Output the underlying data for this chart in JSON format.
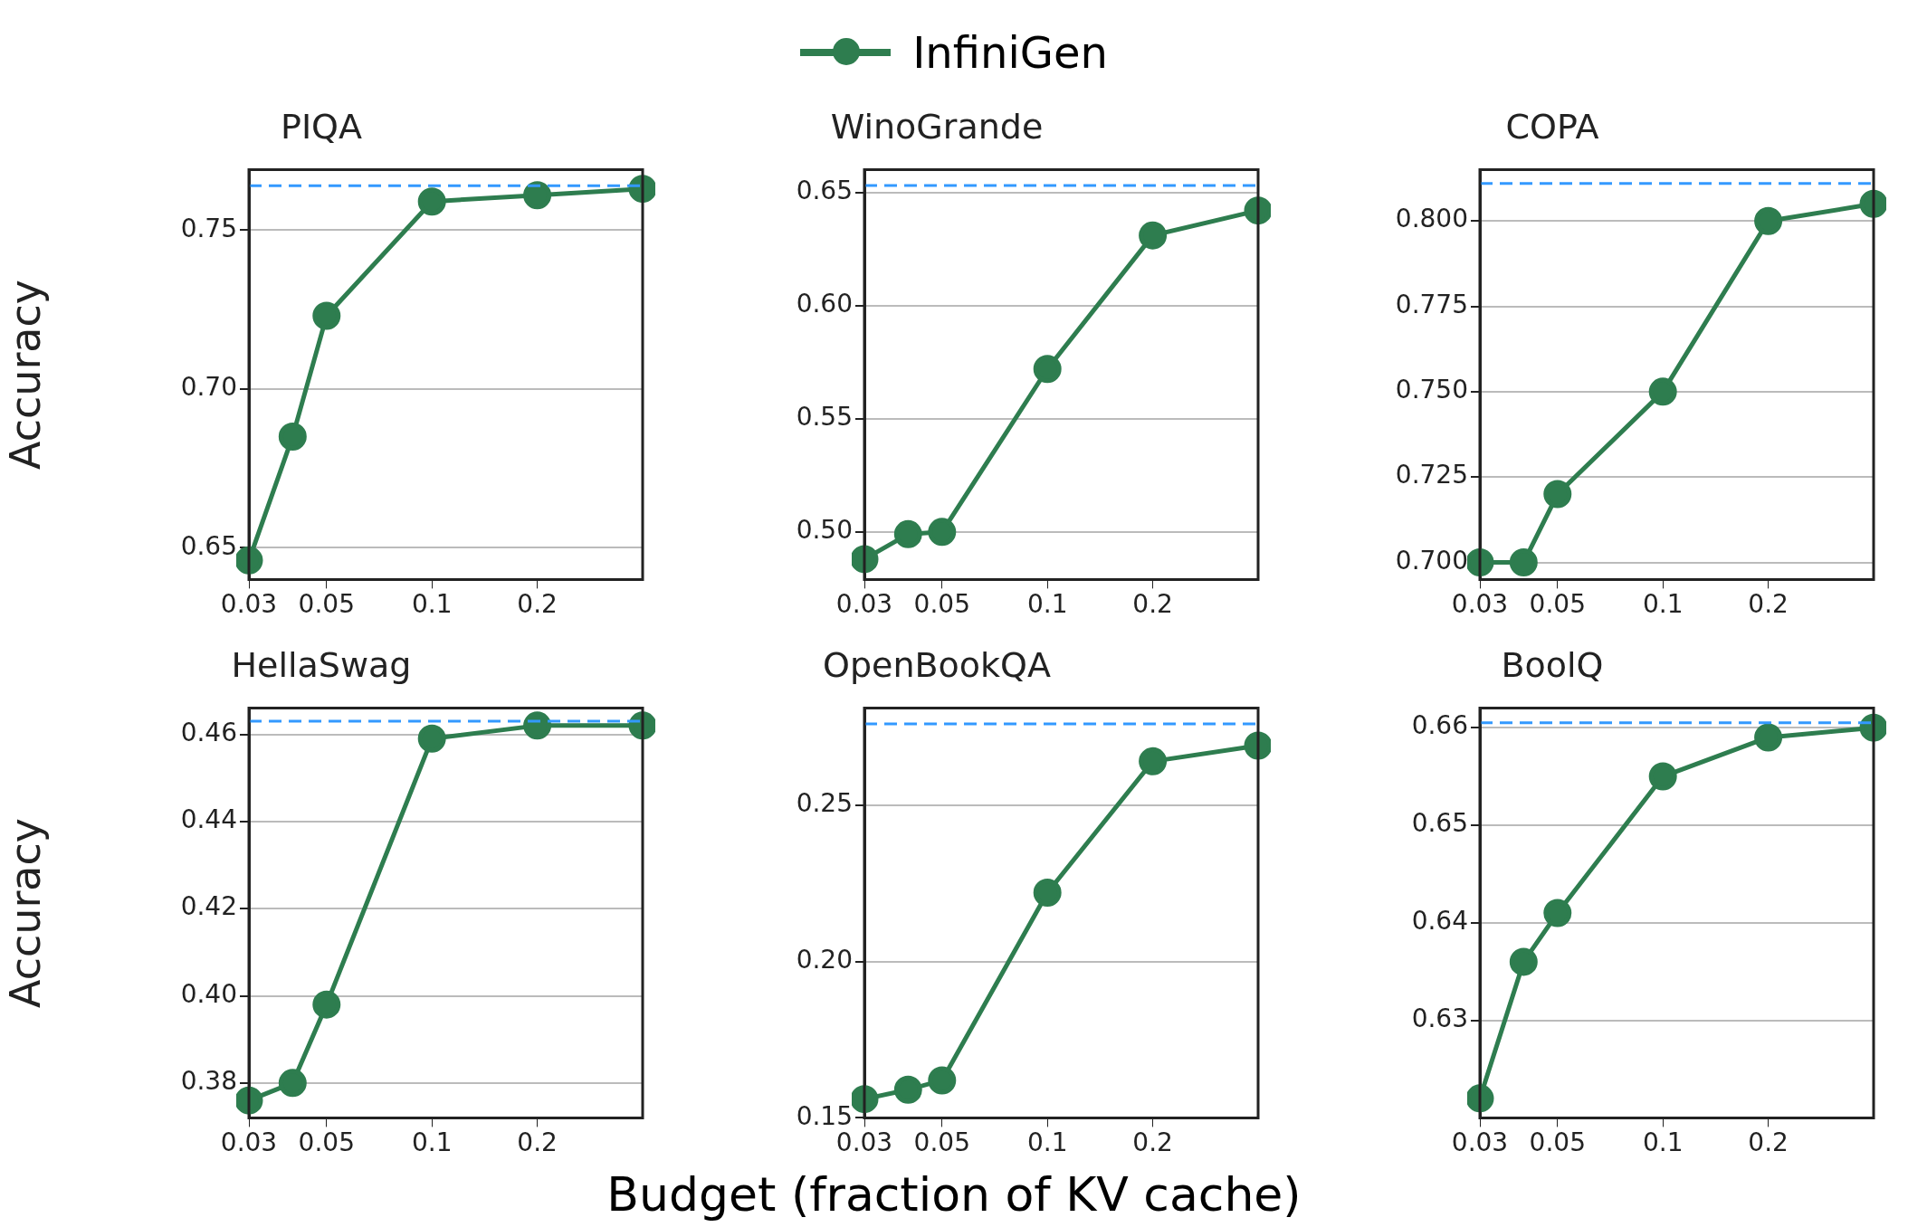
{
  "chart_data": [
    {
      "type": "line",
      "title": "PIQA",
      "ylabel": "Accuracy",
      "legend": "top",
      "marker": "circle",
      "log": "x",
      "grid": "y",
      "series": [
        {
          "name": "InfiniGen",
          "color": "#2e7d4f",
          "x": [
            0.03,
            0.04,
            0.05,
            0.1,
            0.2,
            0.4
          ],
          "values": [
            0.646,
            0.685,
            0.723,
            0.759,
            0.761,
            0.763
          ]
        }
      ],
      "ref_lines": [
        {
          "axis": "y",
          "value": 0.764,
          "color": "#3399ff",
          "line_style": "dashed"
        }
      ],
      "xlim": [
        0.03,
        0.4
      ],
      "xticks": [
        0.03,
        0.05,
        0.1,
        0.2
      ],
      "ylim": [
        0.64,
        0.769
      ],
      "yticks": [
        0.65,
        {
          "value": 0.7,
          "label": "0.70"
        },
        0.75
      ]
    },
    {
      "type": "line",
      "title": "WinoGrande",
      "marker": "circle",
      "log": "x",
      "grid": "y",
      "series": [
        {
          "color": "#2e7d4f",
          "x": [
            0.03,
            0.04,
            0.05,
            0.1,
            0.2,
            0.4
          ],
          "values": [
            0.488,
            0.499,
            0.5,
            0.572,
            0.631,
            0.642
          ]
        }
      ],
      "ref_lines": [
        {
          "axis": "y",
          "value": 0.653,
          "color": "#3399ff",
          "line_style": "dashed"
        }
      ],
      "xlim": [
        0.03,
        0.4
      ],
      "xticks": [
        0.03,
        0.05,
        0.1,
        0.2
      ],
      "ylim": [
        0.479,
        0.66
      ],
      "yticks": [
        {
          "value": 0.5,
          "label": "0.50"
        },
        0.55,
        {
          "value": 0.6,
          "label": "0.60"
        },
        0.65
      ]
    },
    {
      "type": "line",
      "title": "COPA",
      "marker": "circle",
      "log": "x",
      "grid": "y",
      "series": [
        {
          "color": "#2e7d4f",
          "x": [
            0.03,
            0.04,
            0.05,
            0.1,
            0.2,
            0.4
          ],
          "values": [
            0.7,
            0.7,
            0.72,
            0.75,
            0.8,
            0.805
          ]
        }
      ],
      "ref_lines": [
        {
          "axis": "y",
          "value": 0.811,
          "color": "#3399ff",
          "line_style": "dashed"
        }
      ],
      "xlim": [
        0.03,
        0.4
      ],
      "xticks": [
        0.03,
        0.05,
        0.1,
        0.2
      ],
      "ylim": [
        0.695,
        0.815
      ],
      "yticks": [
        {
          "value": 0.7,
          "label": "0.700"
        },
        0.725,
        {
          "value": 0.75,
          "label": "0.750"
        },
        0.775,
        {
          "value": 0.8,
          "label": "0.800"
        }
      ]
    },
    {
      "type": "line",
      "title": "HellaSwag",
      "ylabel": "Accuracy",
      "marker": "circle",
      "log": "x",
      "grid": "y",
      "series": [
        {
          "color": "#2e7d4f",
          "x": [
            0.03,
            0.04,
            0.05,
            0.1,
            0.2,
            0.4
          ],
          "values": [
            0.376,
            0.38,
            0.398,
            0.459,
            0.462,
            0.462
          ]
        }
      ],
      "ref_lines": [
        {
          "axis": "y",
          "value": 0.463,
          "color": "#3399ff",
          "line_style": "dashed"
        }
      ],
      "xlim": [
        0.03,
        0.4
      ],
      "xticks": [
        0.03,
        0.05,
        0.1,
        0.2
      ],
      "ylim": [
        0.372,
        0.466
      ],
      "yticks": [
        0.38,
        {
          "value": 0.4,
          "label": "0.40"
        },
        0.42,
        0.44,
        0.46
      ]
    },
    {
      "type": "line",
      "title": "OpenBookQA",
      "xlabel": "Budget (fraction of KV cache)",
      "marker": "circle",
      "log": "x",
      "grid": "y",
      "series": [
        {
          "color": "#2e7d4f",
          "x": [
            0.03,
            0.04,
            0.05,
            0.1,
            0.2,
            0.4
          ],
          "values": [
            0.156,
            0.159,
            0.162,
            0.222,
            0.264,
            0.269
          ]
        }
      ],
      "ref_lines": [
        {
          "axis": "y",
          "value": 0.276,
          "color": "#3399ff",
          "line_style": "dashed"
        }
      ],
      "xlim": [
        0.03,
        0.4
      ],
      "xticks": [
        0.03,
        0.05,
        0.1,
        0.2
      ],
      "ylim": [
        0.15,
        0.281
      ],
      "yticks": [
        0.15,
        {
          "value": 0.2,
          "label": "0.20"
        },
        0.25
      ]
    },
    {
      "type": "line",
      "title": "BoolQ",
      "marker": "circle",
      "log": "x",
      "grid": "y",
      "series": [
        {
          "color": "#2e7d4f",
          "x": [
            0.03,
            0.04,
            0.05,
            0.1,
            0.2,
            0.4
          ],
          "values": [
            0.622,
            0.636,
            0.641,
            0.655,
            0.659,
            0.66
          ]
        }
      ],
      "ref_lines": [
        {
          "axis": "y",
          "value": 0.6605,
          "color": "#3399ff",
          "line_style": "dashed"
        }
      ],
      "xlim": [
        0.03,
        0.4
      ],
      "xticks": [
        0.03,
        0.05,
        0.1,
        0.2
      ],
      "ylim": [
        0.62,
        0.662
      ],
      "yticks": [
        0.63,
        0.64,
        0.65,
        {
          "value": 0.66,
          "label": "0.66"
        }
      ]
    }
  ]
}
